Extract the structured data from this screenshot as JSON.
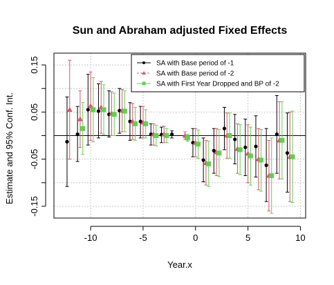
{
  "chart_data": {
    "type": "scatter",
    "title": "Sun and Abraham adjusted Fixed Effects",
    "xlabel": "Year.x",
    "ylabel": "Estimate and 95% Conf. Int.",
    "xlim": [
      -13.5,
      10.5
    ],
    "ylim": [
      -0.175,
      0.175
    ],
    "x_ticks": [
      -10,
      -5,
      0,
      5,
      10
    ],
    "x_tick_labels": [
      "-10",
      "-5",
      "0",
      "5",
      "10"
    ],
    "y_ticks": [
      -0.15,
      -0.05,
      0.05,
      0.15
    ],
    "y_tick_labels": [
      "-0.15",
      "-0.05",
      "0.05",
      "0.15"
    ],
    "grid": true,
    "reference_line_y": 0,
    "legend_position": "top-right",
    "series": [
      {
        "name": "SA with Base period of -1",
        "color": "#000000",
        "marker": "circle",
        "offset": -0.25,
        "points": [
          {
            "x": -12,
            "y": -0.013,
            "lo": -0.108,
            "hi": 0.082
          },
          {
            "x": -11,
            "y": 0.003,
            "lo": -0.055,
            "hi": 0.062
          },
          {
            "x": -10,
            "y": 0.055,
            "lo": -0.02,
            "hi": 0.13
          },
          {
            "x": -9,
            "y": 0.052,
            "lo": -0.005,
            "hi": 0.11
          },
          {
            "x": -8,
            "y": 0.045,
            "lo": -0.003,
            "hi": 0.095
          },
          {
            "x": -7,
            "y": 0.053,
            "lo": 0.005,
            "hi": 0.1
          },
          {
            "x": -6,
            "y": 0.03,
            "lo": -0.01,
            "hi": 0.07
          },
          {
            "x": -5,
            "y": 0.03,
            "lo": -0.005,
            "hi": 0.062
          },
          {
            "x": -4,
            "y": 0.003,
            "lo": -0.02,
            "hi": 0.025
          },
          {
            "x": -3,
            "y": 0.002,
            "lo": -0.015,
            "hi": 0.018
          },
          {
            "x": -2,
            "y": 0.003,
            "lo": -0.005,
            "hi": 0.01
          },
          {
            "x": 0,
            "y": -0.015,
            "lo": -0.045,
            "hi": 0.015
          },
          {
            "x": 1,
            "y": -0.052,
            "lo": -0.098,
            "hi": -0.005
          },
          {
            "x": 2,
            "y": -0.032,
            "lo": -0.08,
            "hi": 0.015
          },
          {
            "x": 3,
            "y": 0.015,
            "lo": -0.03,
            "hi": 0.06
          },
          {
            "x": 4,
            "y": -0.008,
            "lo": -0.06,
            "hi": 0.045
          },
          {
            "x": 5,
            "y": -0.025,
            "lo": -0.085,
            "hi": 0.035
          },
          {
            "x": 6,
            "y": -0.023,
            "lo": -0.088,
            "hi": 0.042
          },
          {
            "x": 7,
            "y": -0.063,
            "lo": -0.14,
            "hi": 0.015
          },
          {
            "x": 8,
            "y": 0.003,
            "lo": -0.08,
            "hi": 0.085
          },
          {
            "x": 9,
            "y": -0.037,
            "lo": -0.12,
            "hi": 0.048
          }
        ]
      },
      {
        "name": "SA with Base period of -2",
        "color": "#DF536B",
        "marker": "triangle",
        "offset": 0,
        "points": [
          {
            "x": -12,
            "y": 0.055,
            "lo": -0.05,
            "hi": 0.16
          },
          {
            "x": -11,
            "y": 0.035,
            "lo": -0.025,
            "hi": 0.095
          },
          {
            "x": -10,
            "y": 0.063,
            "lo": -0.01,
            "hi": 0.135
          },
          {
            "x": -9,
            "y": 0.06,
            "lo": 0.005,
            "hi": 0.115
          },
          {
            "x": -8,
            "y": 0.047,
            "lo": 0.0,
            "hi": 0.093
          },
          {
            "x": -7,
            "y": 0.053,
            "lo": 0.008,
            "hi": 0.098
          },
          {
            "x": -6,
            "y": 0.03,
            "lo": -0.008,
            "hi": 0.068
          },
          {
            "x": -5,
            "y": 0.028,
            "lo": -0.005,
            "hi": 0.062
          },
          {
            "x": -4,
            "y": 0.003,
            "lo": -0.02,
            "hi": 0.025
          },
          {
            "x": -3,
            "y": 0.003,
            "lo": -0.015,
            "hi": 0.02
          },
          {
            "x": -1,
            "y": 0.0,
            "lo": -0.008,
            "hi": 0.008
          },
          {
            "x": 0,
            "y": -0.015,
            "lo": -0.045,
            "hi": 0.015
          },
          {
            "x": 1,
            "y": -0.058,
            "lo": -0.105,
            "hi": -0.01
          },
          {
            "x": 2,
            "y": -0.035,
            "lo": -0.085,
            "hi": 0.015
          },
          {
            "x": 3,
            "y": 0.0,
            "lo": -0.048,
            "hi": 0.048
          },
          {
            "x": 4,
            "y": -0.028,
            "lo": -0.08,
            "hi": 0.025
          },
          {
            "x": 5,
            "y": -0.038,
            "lo": -0.1,
            "hi": 0.023
          },
          {
            "x": 6,
            "y": -0.05,
            "lo": -0.115,
            "hi": 0.015
          },
          {
            "x": 7,
            "y": -0.085,
            "lo": -0.16,
            "hi": -0.01
          },
          {
            "x": 8,
            "y": -0.01,
            "lo": -0.092,
            "hi": 0.072
          },
          {
            "x": 9,
            "y": -0.045,
            "lo": -0.14,
            "hi": 0.05
          }
        ]
      },
      {
        "name": "SA with First Year Dropped and BP of -2",
        "color": "#61D04F",
        "marker": "square",
        "offset": 0.25,
        "points": [
          {
            "x": -11,
            "y": 0.015,
            "lo": -0.04,
            "hi": 0.07
          },
          {
            "x": -10,
            "y": 0.055,
            "lo": -0.013,
            "hi": 0.123
          },
          {
            "x": -9,
            "y": 0.055,
            "lo": 0.002,
            "hi": 0.108
          },
          {
            "x": -8,
            "y": 0.045,
            "lo": 0.0,
            "hi": 0.09
          },
          {
            "x": -7,
            "y": 0.052,
            "lo": 0.008,
            "hi": 0.095
          },
          {
            "x": -6,
            "y": 0.025,
            "lo": -0.01,
            "hi": 0.06
          },
          {
            "x": -5,
            "y": 0.025,
            "lo": -0.005,
            "hi": 0.055
          },
          {
            "x": -4,
            "y": 0.0,
            "lo": -0.022,
            "hi": 0.022
          },
          {
            "x": -3,
            "y": 0.0,
            "lo": -0.015,
            "hi": 0.015
          },
          {
            "x": -1,
            "y": -0.005,
            "lo": -0.012,
            "hi": 0.003
          },
          {
            "x": 0,
            "y": -0.018,
            "lo": -0.048,
            "hi": 0.012
          },
          {
            "x": 1,
            "y": -0.06,
            "lo": -0.108,
            "hi": -0.012
          },
          {
            "x": 2,
            "y": -0.037,
            "lo": -0.087,
            "hi": 0.013
          },
          {
            "x": 3,
            "y": 0.0,
            "lo": -0.048,
            "hi": 0.048
          },
          {
            "x": 4,
            "y": -0.03,
            "lo": -0.083,
            "hi": 0.023
          },
          {
            "x": 5,
            "y": -0.043,
            "lo": -0.105,
            "hi": 0.018
          },
          {
            "x": 6,
            "y": -0.052,
            "lo": -0.118,
            "hi": 0.013
          },
          {
            "x": 7,
            "y": -0.085,
            "lo": -0.165,
            "hi": -0.005
          },
          {
            "x": 8,
            "y": -0.01,
            "lo": -0.092,
            "hi": 0.072
          },
          {
            "x": 9,
            "y": -0.045,
            "lo": -0.142,
            "hi": 0.052
          }
        ]
      }
    ]
  }
}
